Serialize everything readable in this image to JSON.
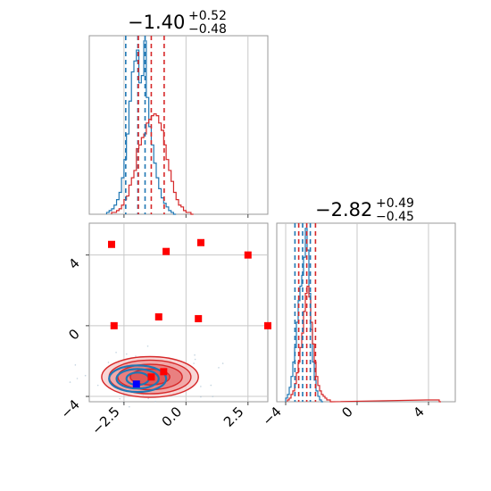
{
  "chart_data": [
    {
      "type": "histogram",
      "panel": "top-left",
      "title_main": "−1.40",
      "title_sup": "+0.52",
      "title_sub": "−0.48",
      "xlim": [
        -3.9,
        3.3
      ],
      "x_ticks": [
        -2.5,
        0.0,
        2.5
      ],
      "grid": true,
      "series": [
        {
          "color": "#1f77b4",
          "bin_width": 0.1,
          "bin_starts": [
            -3.2,
            -3.1,
            -3.0,
            -2.9,
            -2.8,
            -2.7,
            -2.6,
            -2.5,
            -2.4,
            -2.3,
            -2.2,
            -2.1,
            -2.0,
            -1.9,
            -1.8,
            -1.7,
            -1.6,
            -1.5,
            -1.4,
            -1.3,
            -1.2,
            -1.1,
            -1.0,
            -0.9,
            -0.8,
            -0.7,
            -0.6,
            -0.5
          ],
          "counts": [
            1,
            2,
            3,
            5,
            8,
            12,
            20,
            30,
            44,
            62,
            78,
            84,
            90,
            72,
            76,
            95,
            64,
            48,
            38,
            28,
            20,
            14,
            9,
            6,
            4,
            2,
            1,
            0
          ],
          "quantiles": [
            -2.43,
            -1.94,
            -1.65
          ]
        },
        {
          "color": "#d62728",
          "bin_width": 0.1,
          "bin_starts": [
            -3.0,
            -2.9,
            -2.8,
            -2.7,
            -2.6,
            -2.5,
            -2.4,
            -2.3,
            -2.2,
            -2.1,
            -2.0,
            -1.9,
            -1.8,
            -1.7,
            -1.6,
            -1.5,
            -1.4,
            -1.3,
            -1.2,
            -1.1,
            -1.0,
            -0.9,
            -0.8,
            -0.7,
            -0.6,
            -0.5,
            -0.4,
            -0.3,
            -0.2,
            -0.1,
            0.0,
            0.1,
            0.2
          ],
          "counts": [
            1,
            1,
            2,
            3,
            5,
            8,
            10,
            16,
            20,
            24,
            36,
            38,
            42,
            44,
            50,
            52,
            54,
            55,
            54,
            50,
            46,
            38,
            30,
            24,
            18,
            12,
            8,
            5,
            4,
            2,
            1,
            1,
            0
          ],
          "quantiles": [
            -1.92,
            -1.4,
            -0.88
          ]
        }
      ]
    },
    {
      "type": "scatter",
      "panel": "bottom-left",
      "xlim": [
        -3.9,
        3.3
      ],
      "ylim": [
        -4.3,
        5.8
      ],
      "x_ticks": [
        -2.5,
        0.0,
        2.5
      ],
      "x_tick_labels": [
        "−2.5",
        "0.0",
        "2.5"
      ],
      "y_ticks": [
        -4,
        0,
        4
      ],
      "y_tick_labels": [
        "−4",
        "0",
        "4"
      ],
      "grid": true,
      "markers_red": [
        {
          "x": -3.0,
          "y": 4.6
        },
        {
          "x": -0.8,
          "y": 4.2
        },
        {
          "x": 0.6,
          "y": 4.7
        },
        {
          "x": 2.5,
          "y": 4.0
        },
        {
          "x": -2.9,
          "y": 0.0
        },
        {
          "x": -1.1,
          "y": 0.5
        },
        {
          "x": 0.5,
          "y": 0.4
        },
        {
          "x": 3.3,
          "y": 0.0
        },
        {
          "x": -1.4,
          "y": -2.9
        },
        {
          "x": -0.9,
          "y": -2.6
        }
      ],
      "markers_blue": [
        {
          "x": -2.0,
          "y": -3.3
        }
      ],
      "contour_red": {
        "cx": -1.45,
        "cy": -2.9,
        "levels": [
          [
            0.8,
            0.45
          ],
          [
            1.3,
            0.72
          ],
          [
            1.65,
            0.95
          ],
          [
            1.95,
            1.15
          ]
        ]
      },
      "contour_blue": {
        "cx": -1.95,
        "cy": -3.0,
        "levels": [
          [
            0.45,
            0.35
          ],
          [
            0.85,
            0.55
          ],
          [
            1.15,
            0.75
          ]
        ]
      }
    },
    {
      "type": "histogram",
      "panel": "bottom-right",
      "title_main": "−2.82",
      "title_sup": "+0.49",
      "title_sub": "−0.45",
      "xlim": [
        -4.5,
        5.5
      ],
      "x_ticks": [
        -4,
        0,
        4
      ],
      "x_tick_labels": [
        "−4",
        "0",
        "4"
      ],
      "grid": true,
      "series": [
        {
          "color": "#1f77b4",
          "bin_width": 0.1,
          "bin_starts": [
            -4.0,
            -3.9,
            -3.8,
            -3.7,
            -3.6,
            -3.5,
            -3.4,
            -3.3,
            -3.2,
            -3.1,
            -3.0,
            -2.9,
            -2.8,
            -2.7,
            -2.6,
            -2.5,
            -2.4,
            -2.3,
            -2.2,
            -2.1,
            -2.0
          ],
          "counts": [
            2,
            4,
            8,
            14,
            22,
            30,
            44,
            56,
            64,
            70,
            80,
            96,
            84,
            60,
            40,
            22,
            12,
            6,
            3,
            1,
            0
          ],
          "quantiles": [
            -3.48,
            -3.05,
            -2.62
          ]
        },
        {
          "color": "#d62728",
          "bin_width": 0.1,
          "bin_starts": [
            -3.9,
            -3.8,
            -3.7,
            -3.6,
            -3.5,
            -3.4,
            -3.3,
            -3.2,
            -3.1,
            -3.0,
            -2.9,
            -2.8,
            -2.7,
            -2.6,
            -2.5,
            -2.4,
            -2.3,
            -2.2,
            -2.1,
            -2.0,
            -1.9,
            -1.8,
            -1.7,
            -1.6,
            -1.5,
            3.9,
            4.0,
            4.1,
            4.2,
            4.3,
            4.4,
            4.5,
            4.6
          ],
          "counts": [
            1,
            2,
            4,
            6,
            10,
            16,
            22,
            30,
            38,
            50,
            60,
            64,
            58,
            44,
            32,
            22,
            14,
            9,
            6,
            4,
            3,
            2,
            1,
            1,
            0,
            1,
            1,
            1,
            1,
            1,
            1,
            1,
            0
          ],
          "quantiles": [
            -3.27,
            -2.82,
            -2.33
          ]
        }
      ]
    }
  ]
}
